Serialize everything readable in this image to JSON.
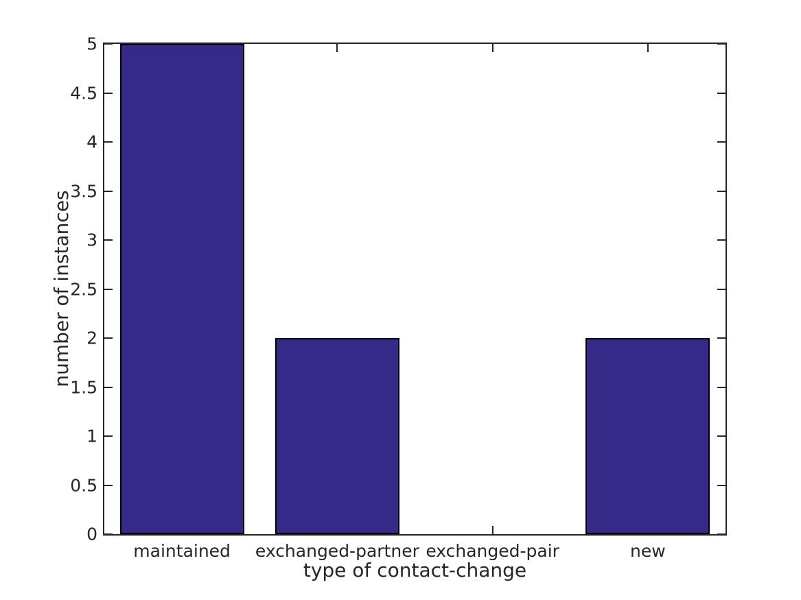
{
  "figure": {
    "background": "#ffffff"
  },
  "chart_data": {
    "type": "bar",
    "categories": [
      "maintained",
      "exchanged-partner",
      "exchanged-pair",
      "new"
    ],
    "values": [
      5,
      2,
      0,
      2
    ],
    "title": "",
    "xlabel": "type of contact-change",
    "ylabel": "number of instances",
    "ylim": [
      0,
      5
    ],
    "ytick_step": 0.5,
    "ytick_labels": [
      "0",
      "0.5",
      "1",
      "1.5",
      "2",
      "2.5",
      "3",
      "3.5",
      "4",
      "4.5",
      "5"
    ],
    "bar_width_fraction": 0.8,
    "bar_color": "#352a87",
    "bar_edge_color": "#000000",
    "axis_color": "#262626",
    "grid": false,
    "legend": null
  }
}
